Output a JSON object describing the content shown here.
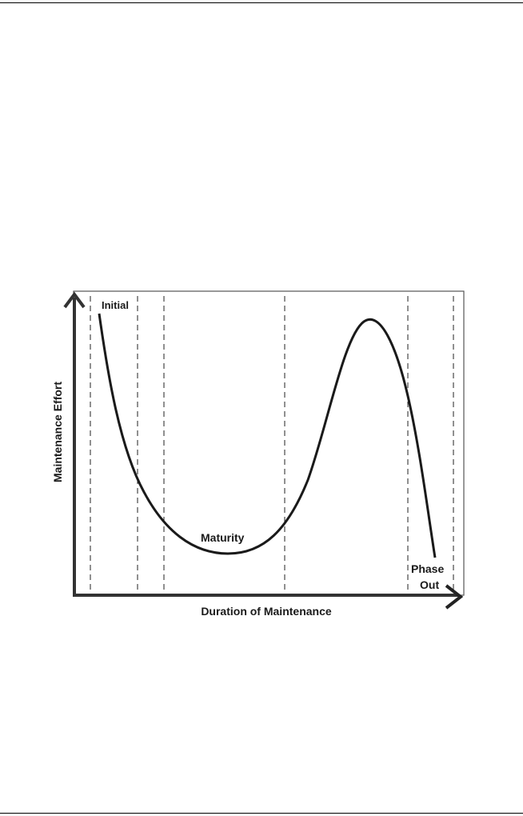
{
  "figure": {
    "y_axis_label": "Maintenance Effort",
    "x_axis_label": "Duration of Maintenance",
    "phases": {
      "initial": "Initial",
      "maturity": "Maturity",
      "phase_out_line1": "Phase",
      "phase_out_line2": "Out"
    }
  },
  "colors": {
    "ink": "#1a1a1a",
    "frame": "#555555"
  }
}
